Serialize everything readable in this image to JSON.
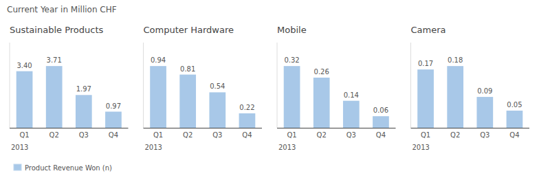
{
  "title": "Current Year in Million CHF",
  "chart_data": [
    {
      "type": "bar",
      "title": "Sustainable Products",
      "xlabel": "2013",
      "categories": [
        "Q1",
        "Q2",
        "Q3",
        "Q4"
      ],
      "series": [
        {
          "name": "Product Revenue Won (n)",
          "color": "#a8c8e8",
          "values": [
            3.4,
            3.71,
            1.97,
            0.97
          ],
          "value_labels": [
            "3.40",
            "3.71",
            "1.97",
            "0.97"
          ]
        }
      ],
      "ylim": [
        0,
        5.1198
      ],
      "tick_labels": "x",
      "data_labels": true,
      "grid": false,
      "legend": "lower left"
    },
    {
      "type": "bar",
      "title": "Computer Hardware",
      "xlabel": "2013",
      "categories": [
        "Q1",
        "Q2",
        "Q3",
        "Q4"
      ],
      "series": [
        {
          "name": "Product Revenue Won (n)",
          "color": "#a8c8e8",
          "values": [
            0.94,
            0.81,
            0.54,
            0.22
          ],
          "value_labels": [
            "0.94",
            "0.81",
            "0.54",
            "0.22"
          ]
        }
      ],
      "ylim": [
        0,
        1.2972
      ],
      "tick_labels": "x",
      "data_labels": true,
      "grid": false
    },
    {
      "type": "bar",
      "title": "Mobile",
      "xlabel": "2013",
      "categories": [
        "Q1",
        "Q2",
        "Q3",
        "Q4"
      ],
      "series": [
        {
          "name": "Product Revenue Won (n)",
          "color": "#a8c8e8",
          "values": [
            0.32,
            0.26,
            0.14,
            0.06
          ],
          "value_labels": [
            "0.32",
            "0.26",
            "0.14",
            "0.06"
          ]
        }
      ],
      "ylim": [
        0,
        0.4416
      ],
      "tick_labels": "x",
      "data_labels": true,
      "grid": false
    },
    {
      "type": "bar",
      "title": "Camera",
      "xlabel": "2013",
      "categories": [
        "Q1",
        "Q2",
        "Q3",
        "Q4"
      ],
      "series": [
        {
          "name": "Product Revenue Won (n)",
          "color": "#a8c8e8",
          "values": [
            0.17,
            0.18,
            0.09,
            0.05
          ],
          "value_labels": [
            "0.17",
            "0.18",
            "0.09",
            "0.05"
          ]
        }
      ],
      "ylim": [
        0,
        0.2484
      ],
      "tick_labels": "x",
      "data_labels": true,
      "grid": false
    }
  ]
}
